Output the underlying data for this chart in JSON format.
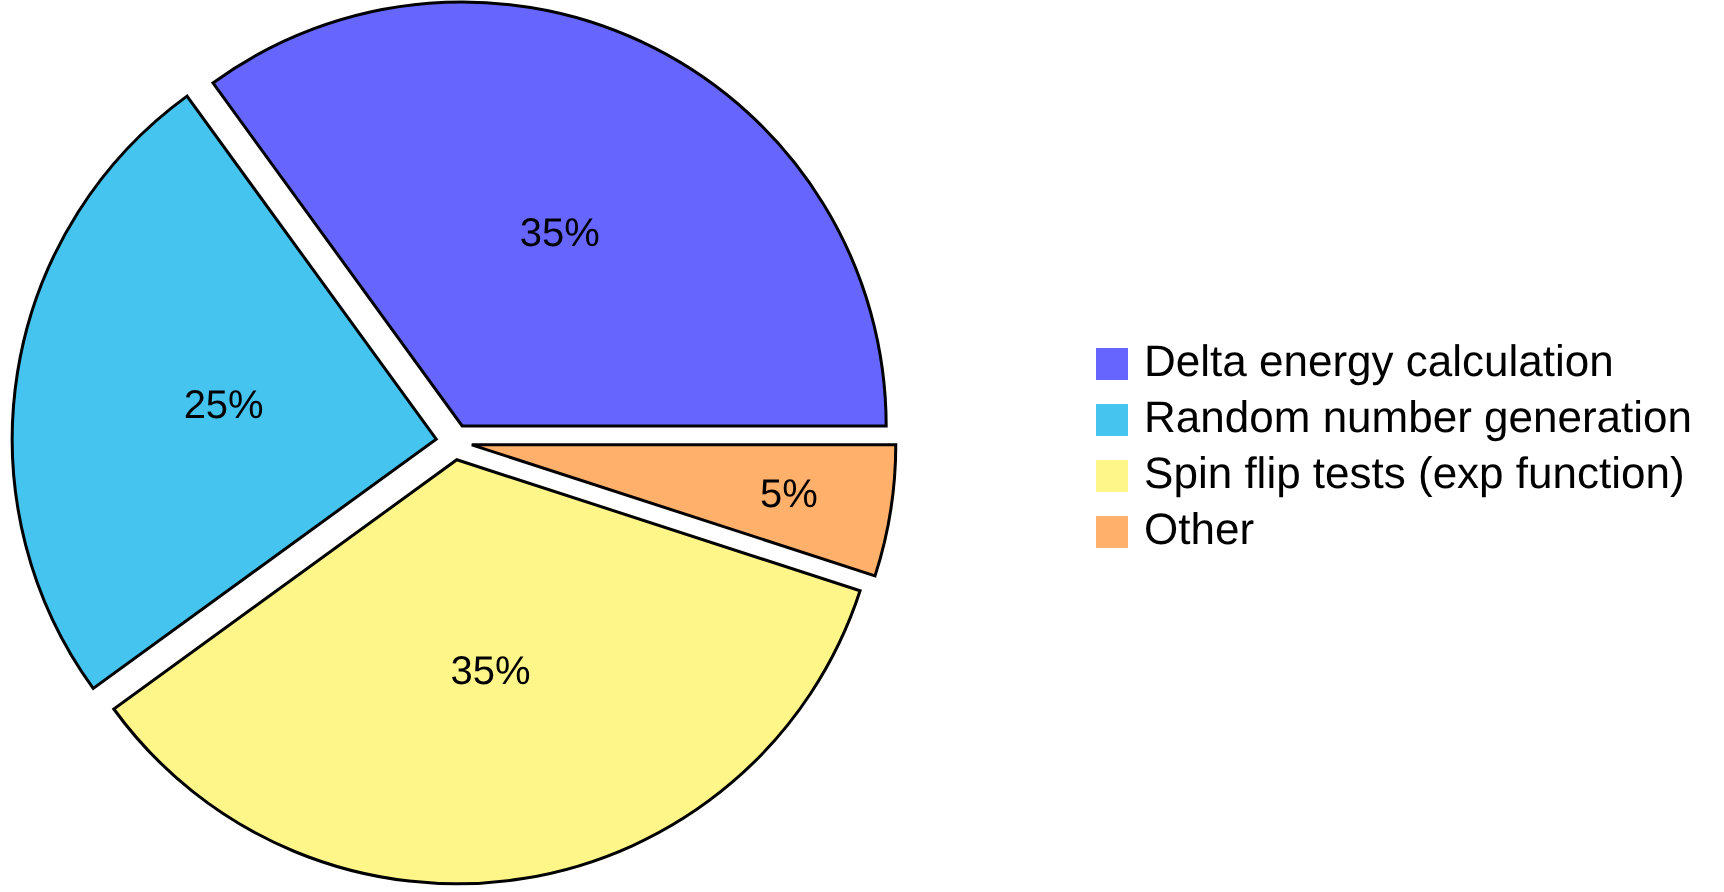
{
  "chart_data": {
    "type": "pie",
    "categories": [
      "Delta energy calculation",
      "Random number generation",
      "Spin flip tests (exp function)",
      "Other"
    ],
    "values": [
      35,
      25,
      35,
      5
    ],
    "colors": [
      "#6666ff",
      "#44c4ee",
      "#fff68a",
      "#ffb06a"
    ],
    "value_labels": [
      "35%",
      "25%",
      "35%",
      "5%"
    ],
    "legend": "right"
  }
}
